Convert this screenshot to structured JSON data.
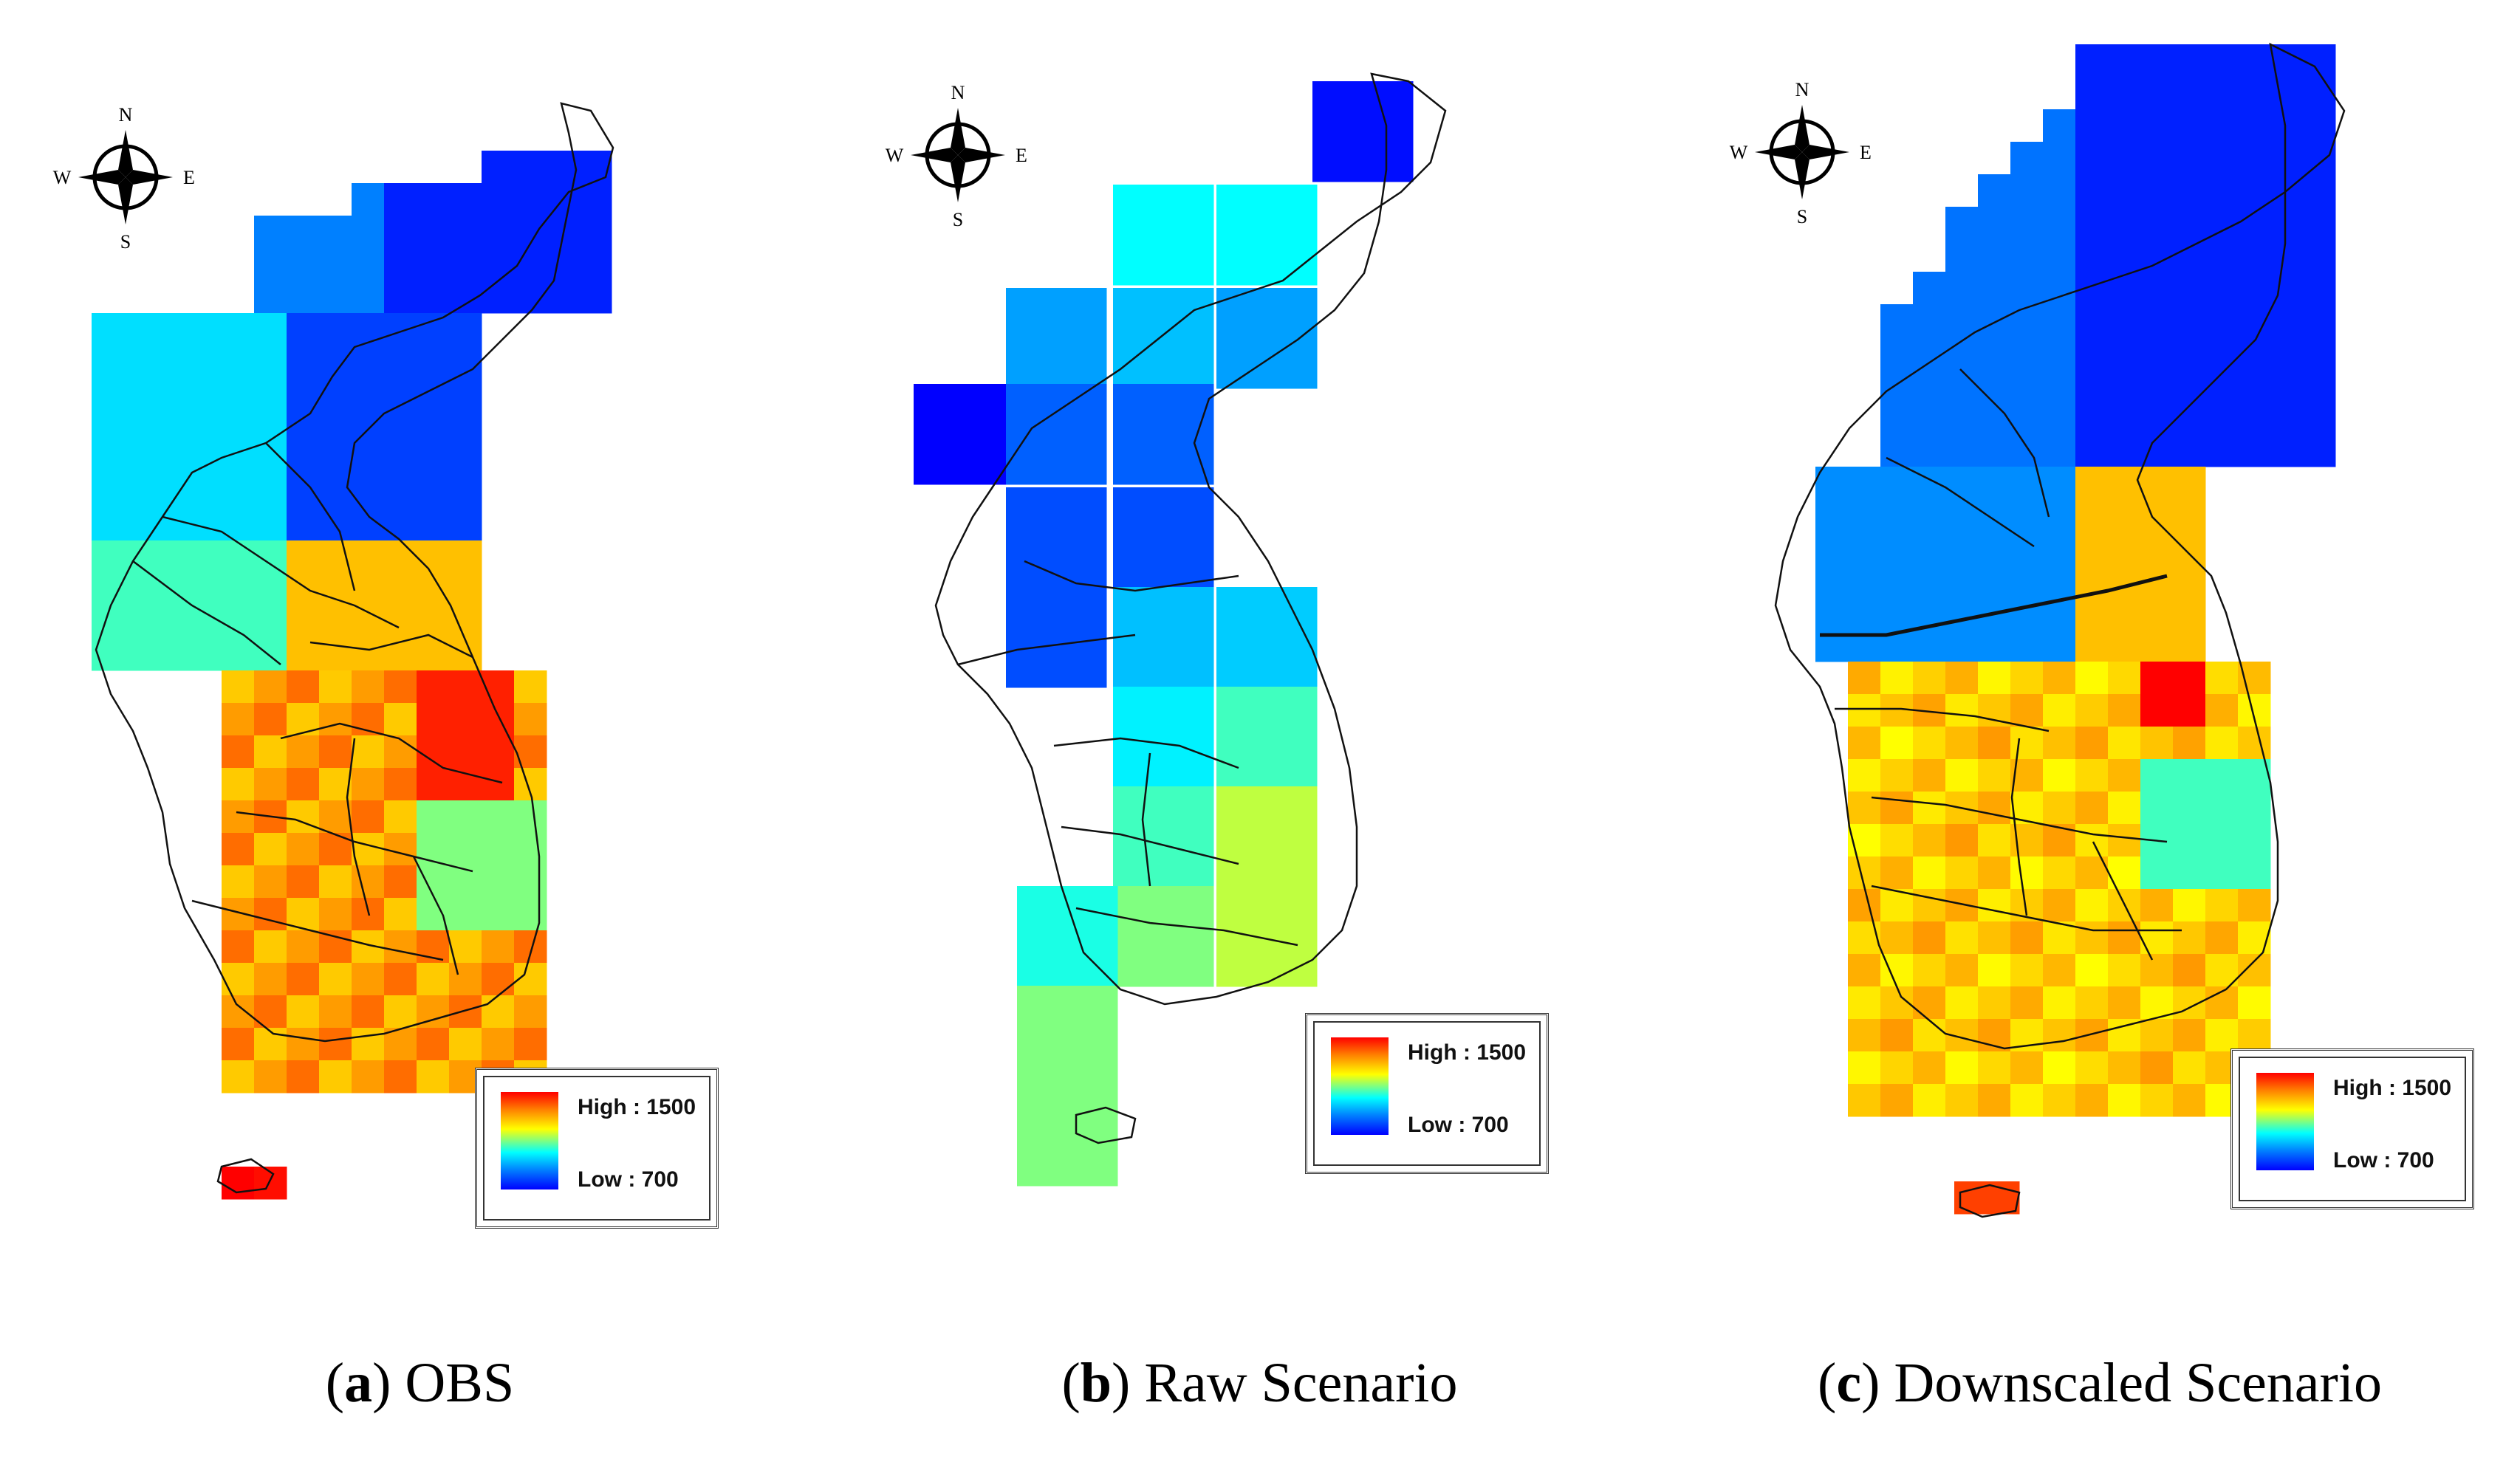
{
  "panels": [
    {
      "id": "a",
      "caption_letter": "a",
      "caption_text": "OBS",
      "legend": {
        "high": "High : 1500",
        "low": "Low : 700"
      },
      "compass": {
        "n": "N",
        "s": "S",
        "e": "E",
        "w": "W"
      }
    },
    {
      "id": "b",
      "caption_letter": "b",
      "caption_text": "Raw Scenario",
      "legend": {
        "high": "High : 1500",
        "low": "Low : 700"
      },
      "compass": {
        "n": "N",
        "s": "S",
        "e": "E",
        "w": "W"
      }
    },
    {
      "id": "c",
      "caption_letter": "c",
      "caption_text": "Downscaled Scenario",
      "legend": {
        "high": "High : 1500",
        "low": "Low : 700"
      },
      "compass": {
        "n": "N",
        "s": "S",
        "e": "E",
        "w": "W"
      }
    }
  ],
  "color_scale": {
    "high_value": 1500,
    "low_value": 700,
    "ramp": [
      "#ff0000",
      "#ff8000",
      "#ffff00",
      "#00ffff",
      "#0080ff",
      "#0000ff"
    ]
  }
}
